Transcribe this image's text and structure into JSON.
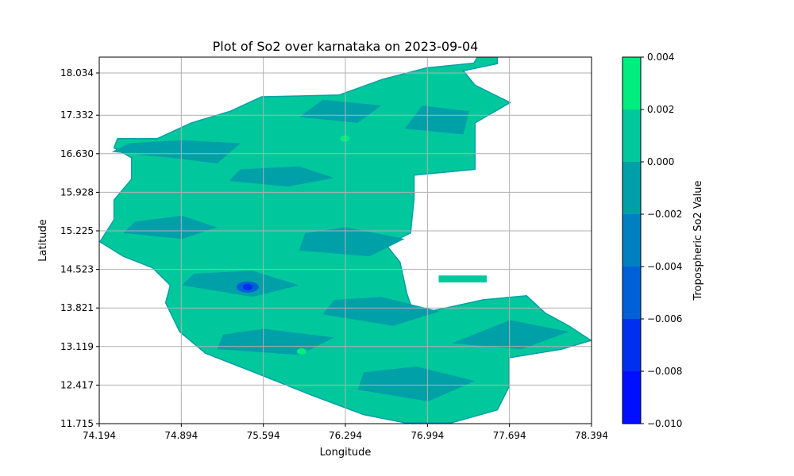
{
  "chart_data": {
    "type": "heatmap",
    "subtype": "filled-contour",
    "title": "Plot of So2 over karnataka on 2023-09-04",
    "xlabel": "Longitude",
    "ylabel": "Latitude",
    "xlim": [
      74.194,
      78.394
    ],
    "ylim": [
      11.715,
      18.034
    ],
    "x_ticks": [
      "74.194",
      "74.894",
      "75.594",
      "76.294",
      "76.994",
      "77.694",
      "78.394"
    ],
    "y_ticks": [
      "11.715",
      "12.417",
      "13.119",
      "13.821",
      "14.523",
      "15.225",
      "15.928",
      "16.630",
      "17.332",
      "18.034"
    ],
    "grid": true,
    "colorbar": {
      "label": "Tropospheric So2 Value",
      "range": [
        -0.01,
        0.004
      ],
      "ticks": [
        "0.004",
        "0.002",
        "0.000",
        "−0.002",
        "−0.004",
        "−0.006",
        "−0.008",
        "−0.010"
      ],
      "levels": [
        {
          "from": 0.002,
          "to": 0.004,
          "color": "#00ee80"
        },
        {
          "from": 0.0,
          "to": 0.002,
          "color": "#00c89c"
        },
        {
          "from": -0.002,
          "to": 0.0,
          "color": "#00a0a8"
        },
        {
          "from": -0.004,
          "to": -0.002,
          "color": "#0080c0"
        },
        {
          "from": -0.006,
          "to": -0.004,
          "color": "#0060d8"
        },
        {
          "from": -0.008,
          "to": -0.006,
          "color": "#0030ee"
        },
        {
          "from": -0.01,
          "to": -0.008,
          "color": "#0010ff"
        }
      ]
    },
    "region_outline_lonlat": [
      [
        77.44,
        18.1
      ],
      [
        77.39,
        17.93
      ],
      [
        76.99,
        17.85
      ],
      [
        76.61,
        17.65
      ],
      [
        76.24,
        17.38
      ],
      [
        75.58,
        17.35
      ],
      [
        75.31,
        17.1
      ],
      [
        74.98,
        16.9
      ],
      [
        74.69,
        16.63
      ],
      [
        74.35,
        16.63
      ],
      [
        74.32,
        16.47
      ],
      [
        74.47,
        16.3
      ],
      [
        74.47,
        15.93
      ],
      [
        74.32,
        15.57
      ],
      [
        74.32,
        15.23
      ],
      [
        74.2,
        14.85
      ],
      [
        74.4,
        14.6
      ],
      [
        74.65,
        14.4
      ],
      [
        74.8,
        14.1
      ],
      [
        74.76,
        13.8
      ],
      [
        74.88,
        13.3
      ],
      [
        75.1,
        12.93
      ],
      [
        75.58,
        12.55
      ],
      [
        76.0,
        12.21
      ],
      [
        76.45,
        11.87
      ],
      [
        76.8,
        11.73
      ],
      [
        77.2,
        11.73
      ],
      [
        77.59,
        11.95
      ],
      [
        77.69,
        12.35
      ],
      [
        77.69,
        12.85
      ],
      [
        78.14,
        13.0
      ],
      [
        78.39,
        13.15
      ],
      [
        78.2,
        13.4
      ],
      [
        78.0,
        13.62
      ],
      [
        77.84,
        13.92
      ],
      [
        77.47,
        13.85
      ],
      [
        77.13,
        13.7
      ],
      [
        76.88,
        13.6
      ],
      [
        76.82,
        13.95
      ],
      [
        76.76,
        14.5
      ],
      [
        76.64,
        14.8
      ],
      [
        76.85,
        15.0
      ],
      [
        76.88,
        15.6
      ],
      [
        76.88,
        16.0
      ],
      [
        77.4,
        16.1
      ],
      [
        77.4,
        16.5
      ],
      [
        77.4,
        16.9
      ],
      [
        77.7,
        17.25
      ],
      [
        77.4,
        17.55
      ],
      [
        77.3,
        17.8
      ],
      [
        77.59,
        17.92
      ],
      [
        77.59,
        18.1
      ]
    ],
    "low_so2_patches_lonlat": [
      [
        [
          74.3,
          16.4
        ],
        [
          74.8,
          16.3
        ],
        [
          75.2,
          16.2
        ],
        [
          75.4,
          16.55
        ],
        [
          74.9,
          16.6
        ],
        [
          74.45,
          16.55
        ]
      ],
      [
        [
          75.3,
          15.9
        ],
        [
          75.8,
          15.8
        ],
        [
          76.2,
          15.95
        ],
        [
          75.9,
          16.15
        ],
        [
          75.4,
          16.1
        ]
      ],
      [
        [
          74.4,
          15.0
        ],
        [
          74.9,
          14.9
        ],
        [
          75.2,
          15.1
        ],
        [
          74.9,
          15.3
        ],
        [
          74.5,
          15.2
        ]
      ],
      [
        [
          75.9,
          14.7
        ],
        [
          76.5,
          14.6
        ],
        [
          76.8,
          14.9
        ],
        [
          76.3,
          15.1
        ],
        [
          75.95,
          15.0
        ]
      ],
      [
        [
          74.9,
          14.1
        ],
        [
          75.5,
          13.9
        ],
        [
          75.9,
          14.1
        ],
        [
          75.5,
          14.35
        ],
        [
          75.0,
          14.3
        ]
      ],
      [
        [
          76.1,
          13.6
        ],
        [
          76.7,
          13.4
        ],
        [
          77.1,
          13.65
        ],
        [
          76.6,
          13.9
        ],
        [
          76.2,
          13.85
        ]
      ],
      [
        [
          75.2,
          13.0
        ],
        [
          75.9,
          12.9
        ],
        [
          76.2,
          13.2
        ],
        [
          75.6,
          13.35
        ],
        [
          75.25,
          13.25
        ]
      ],
      [
        [
          76.4,
          12.3
        ],
        [
          77.0,
          12.1
        ],
        [
          77.4,
          12.45
        ],
        [
          76.9,
          12.7
        ],
        [
          76.45,
          12.6
        ]
      ],
      [
        [
          76.8,
          16.8
        ],
        [
          77.3,
          16.7
        ],
        [
          77.35,
          17.1
        ],
        [
          76.95,
          17.2
        ]
      ],
      [
        [
          75.9,
          17.0
        ],
        [
          76.4,
          16.9
        ],
        [
          76.6,
          17.2
        ],
        [
          76.1,
          17.3
        ]
      ],
      [
        [
          77.2,
          13.1
        ],
        [
          77.8,
          13.0
        ],
        [
          78.2,
          13.3
        ],
        [
          77.7,
          13.5
        ]
      ]
    ],
    "hotspots_lonlat": [
      {
        "lon": 75.46,
        "lat": 14.07,
        "level": -0.008
      },
      {
        "lon": 76.29,
        "lat": 16.63,
        "level": 0.003
      },
      {
        "lon": 75.92,
        "lat": 12.96,
        "level": 0.003
      }
    ],
    "isolated_patch_lonlat": [
      [
        77.09,
        14.15
      ],
      [
        77.5,
        14.15
      ],
      [
        77.5,
        14.27
      ],
      [
        77.09,
        14.27
      ]
    ]
  }
}
